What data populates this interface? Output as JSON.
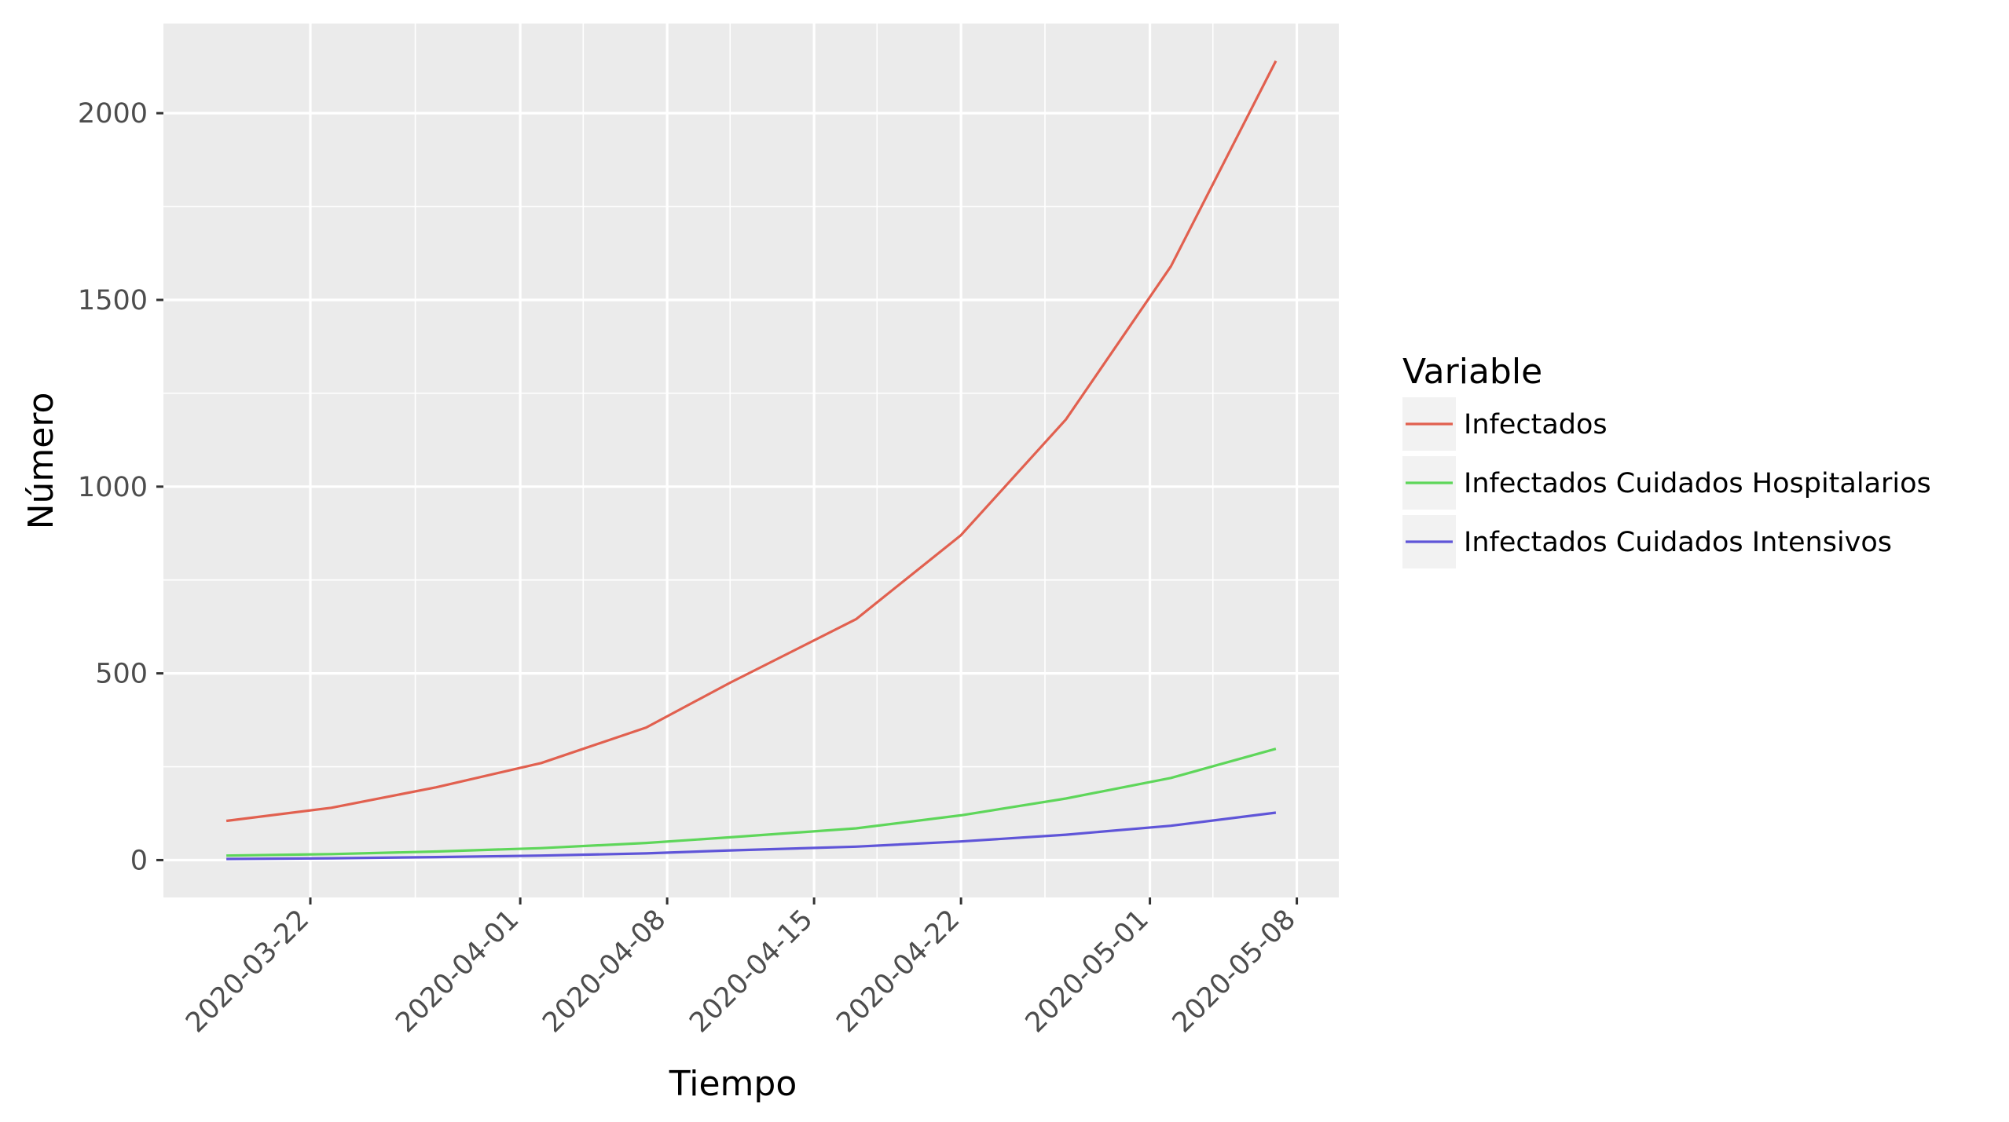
{
  "chart_data": {
    "type": "line",
    "xlabel": "Tiempo",
    "ylabel": "Número",
    "x_scale": "date",
    "xlim": [
      "2020-03-15",
      "2020-05-10"
    ],
    "ylim": [
      -100,
      2240
    ],
    "yticks": [
      0,
      500,
      1000,
      1500,
      2000
    ],
    "xticks": [
      "2020-03-22",
      "2020-04-01",
      "2020-04-08",
      "2020-04-15",
      "2020-04-22",
      "2020-05-01",
      "2020-05-08"
    ],
    "grid": true,
    "panel_background": "#EBEBEB",
    "legend": {
      "title": "Variable",
      "position": "right"
    },
    "x": [
      "2020-03-18",
      "2020-03-23",
      "2020-03-28",
      "2020-04-02",
      "2020-04-07",
      "2020-04-11",
      "2020-04-17",
      "2020-04-22",
      "2020-04-27",
      "2020-05-02",
      "2020-05-07"
    ],
    "series": [
      {
        "name": "Infectados",
        "color": "#E1604F",
        "values": [
          105,
          140,
          195,
          260,
          355,
          475,
          645,
          870,
          1180,
          1590,
          2140
        ]
      },
      {
        "name": "Infectados Cuidados Hospitalarios",
        "color": "#5ED65A",
        "values": [
          12,
          16,
          23,
          32,
          46,
          61,
          85,
          120,
          165,
          220,
          298
        ]
      },
      {
        "name": "Infectados Cuidados Intensivos",
        "color": "#5F55D8",
        "values": [
          3,
          5,
          8,
          12,
          18,
          26,
          36,
          50,
          68,
          92,
          127
        ]
      }
    ]
  }
}
